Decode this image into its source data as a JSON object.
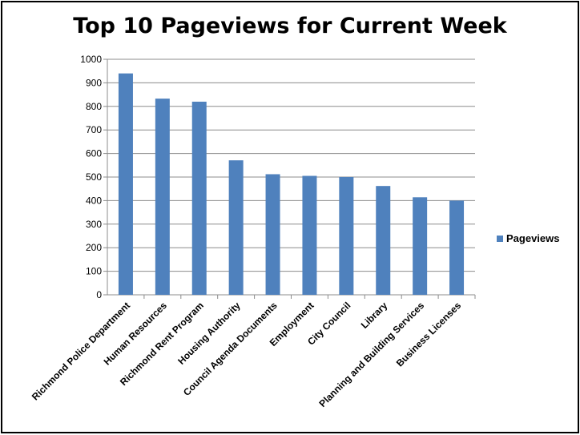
{
  "chart_data": {
    "type": "bar",
    "title": "Top 10 Pageviews for Current Week",
    "categories": [
      "Richmond Police Department",
      "Human Resources",
      "Richmond Rent Program",
      "Housing Authority",
      "Council Agenda Documents",
      "Employment",
      "City Council",
      "Library",
      "Planning and Building Services",
      "Business Licenses"
    ],
    "series": [
      {
        "name": "Pageviews",
        "values": [
          940,
          833,
          820,
          571,
          512,
          505,
          500,
          462,
          414,
          400
        ],
        "color": "#4F81BD"
      }
    ],
    "xlabel": "",
    "ylabel": "",
    "ylim": [
      0,
      1000
    ],
    "yticks": [
      0,
      100,
      200,
      300,
      400,
      500,
      600,
      700,
      800,
      900,
      1000
    ],
    "grid": true,
    "legend_position": "right"
  }
}
